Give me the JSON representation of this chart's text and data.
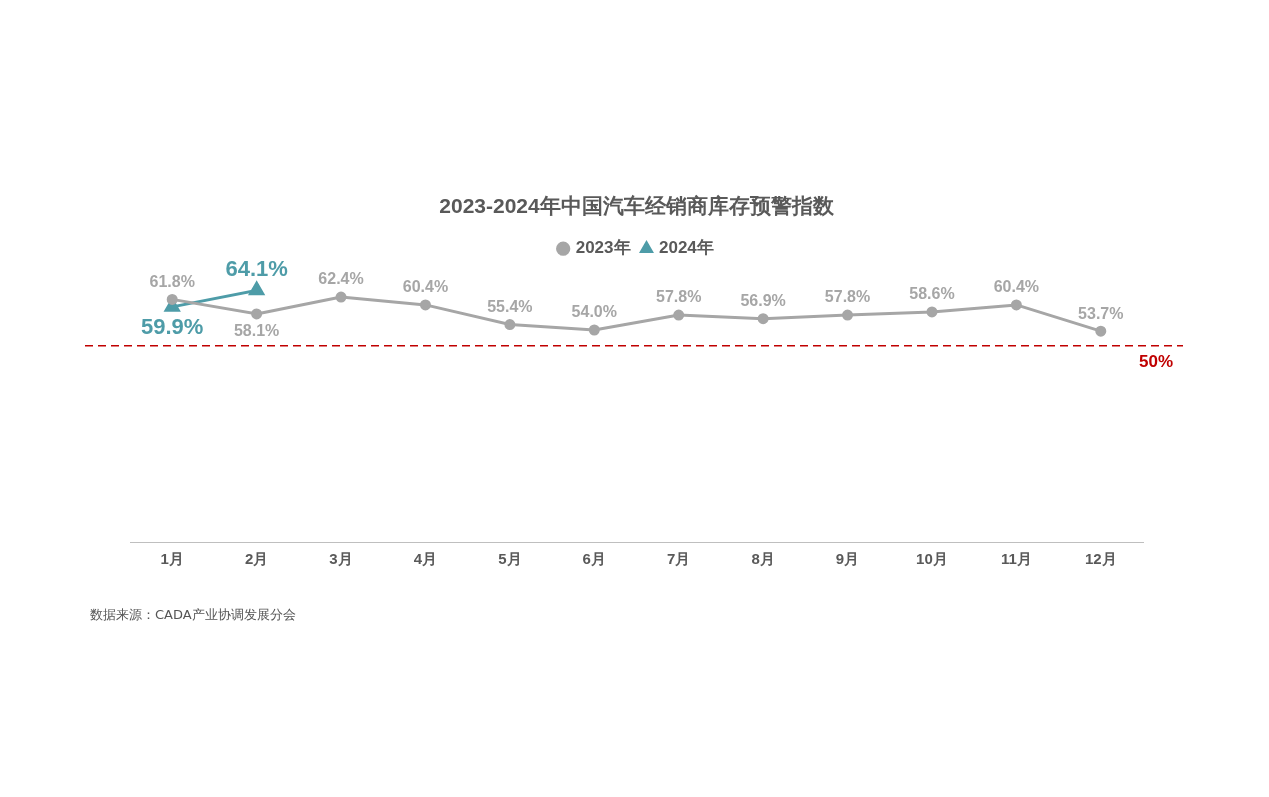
{
  "chart_data": {
    "type": "line",
    "title": "2023-2024年中国汽车经销商库存预警指数",
    "categories": [
      "1月",
      "2月",
      "3月",
      "4月",
      "5月",
      "6月",
      "7月",
      "8月",
      "9月",
      "10月",
      "11月",
      "12月"
    ],
    "series": [
      {
        "name": "2023年",
        "color": "#a6a6a6",
        "marker": "circle",
        "values": [
          61.8,
          58.1,
          62.4,
          60.4,
          55.4,
          54.0,
          57.8,
          56.9,
          57.8,
          58.6,
          60.4,
          53.7
        ],
        "value_labels": [
          "61.8%",
          "58.1%",
          "62.4%",
          "60.4%",
          "55.4%",
          "54.0%",
          "57.8%",
          "56.9%",
          "57.8%",
          "58.6%",
          "60.4%",
          "53.7%"
        ]
      },
      {
        "name": "2024年",
        "color": "#4e9ca8",
        "marker": "triangle",
        "values": [
          59.9,
          64.1,
          null,
          null,
          null,
          null,
          null,
          null,
          null,
          null,
          null,
          null
        ],
        "value_labels": [
          "59.9%",
          "64.1%",
          null,
          null,
          null,
          null,
          null,
          null,
          null,
          null,
          null,
          null
        ]
      }
    ],
    "tick_labels": "x",
    "legend": "top",
    "ref_lines": [
      {
        "axis": "y",
        "value": 50,
        "label": "50%",
        "color": "#c00000",
        "line_style": "dashed"
      }
    ],
    "annotations": [
      "数据来源：CADA产业协调发展分会"
    ]
  }
}
